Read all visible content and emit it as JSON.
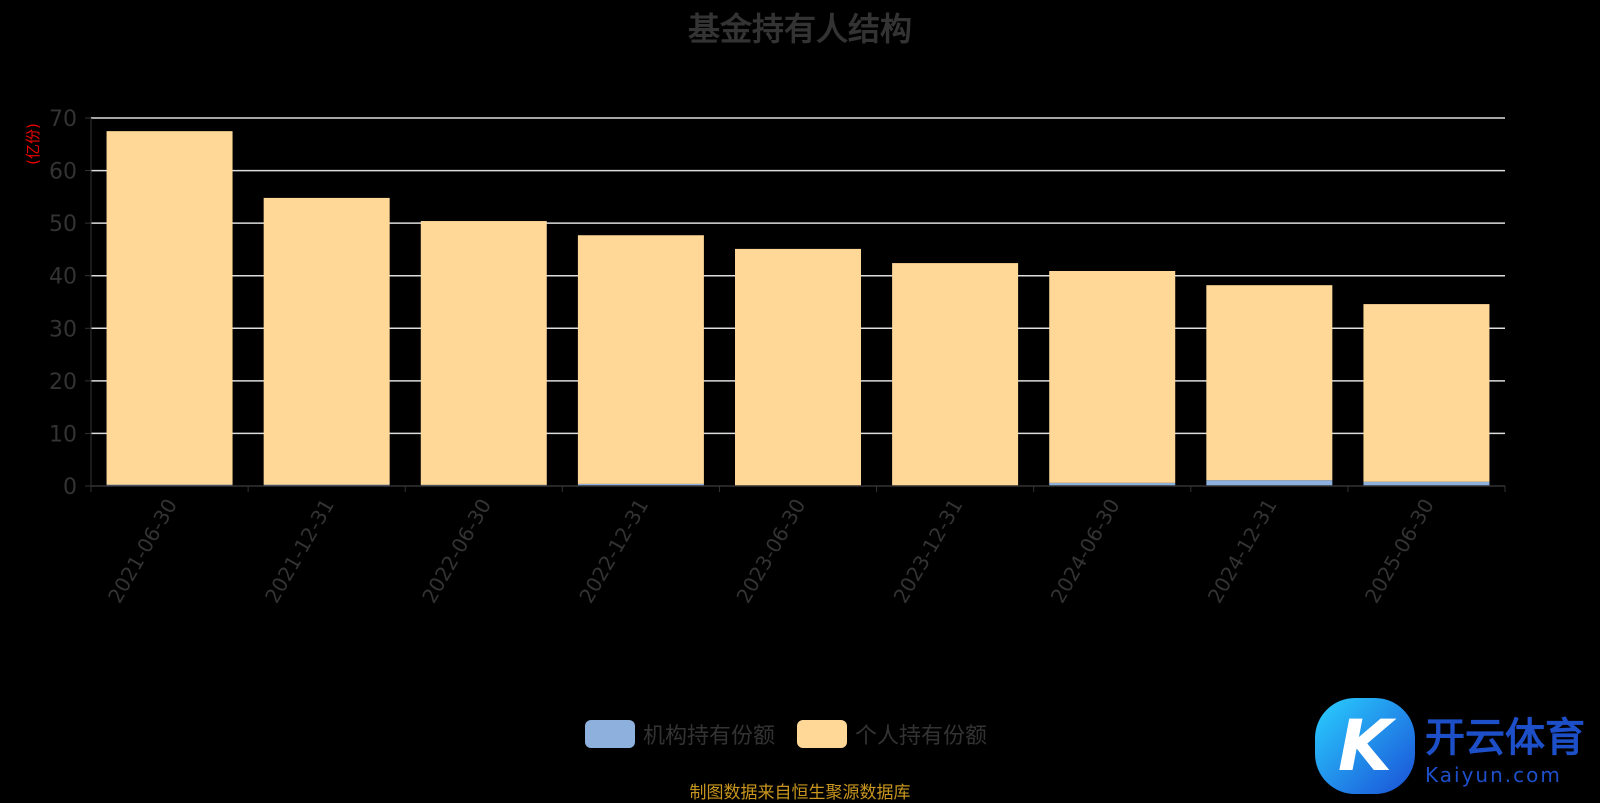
{
  "chart_data": {
    "type": "bar",
    "stacked": true,
    "title": "基金持有人结构",
    "ylabel": "(亿份)",
    "xlabel": "",
    "ylim": [
      0,
      70
    ],
    "yticks": [
      0,
      10,
      20,
      30,
      40,
      50,
      60,
      70
    ],
    "grid": true,
    "legend_position": "bottom",
    "categories": [
      "2021-06-30",
      "2021-12-31",
      "2022-06-30",
      "2022-12-31",
      "2023-06-30",
      "2023-12-31",
      "2024-06-30",
      "2024-12-31",
      "2025-06-30"
    ],
    "series": [
      {
        "name": "机构持有份额",
        "color": "#8eb0dc",
        "values": [
          0.25,
          0.25,
          0.22,
          0.4,
          0.1,
          0.1,
          0.6,
          1.1,
          0.8
        ]
      },
      {
        "name": "个人持有份额",
        "color": "#ffd898",
        "values": [
          67.25,
          54.55,
          50.18,
          47.3,
          45.0,
          42.3,
          40.3,
          37.1,
          33.8
        ]
      }
    ]
  },
  "source": "制图数据来自恒生聚源数据库",
  "logo": {
    "cn": "开云体育",
    "en": "Kaiyun.com"
  }
}
